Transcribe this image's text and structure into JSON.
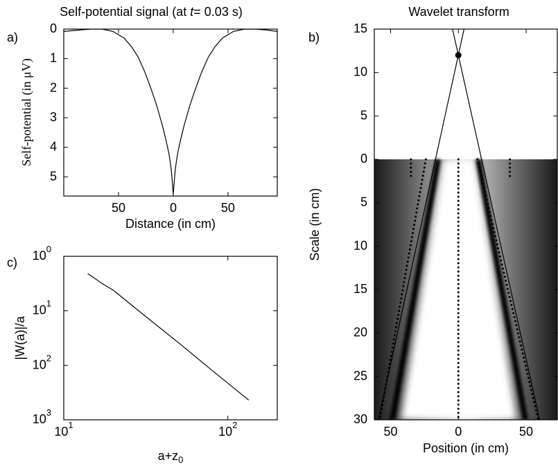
{
  "chart_data": [
    {
      "type": "line",
      "panel_label": "a)",
      "title_pre": "Self-potential signal (at ",
      "title_italic": "t",
      "title_post": "= 0.03 s)",
      "xlabel": "Distance (in cm)",
      "ylabel": "Self-potential (in μV)",
      "xlim": [
        -100,
        95
      ],
      "ylim": [
        0,
        5.65
      ],
      "y_inverted": true,
      "xticks": [
        {
          "value": -50,
          "label": "50"
        },
        0,
        {
          "value": 50,
          "label": "50"
        }
      ],
      "yticks": [
        0,
        1,
        2,
        3,
        4,
        5
      ],
      "series": [
        {
          "color": "#000000",
          "style": "solid",
          "x": [
            -100,
            -85,
            -75,
            -65,
            -55,
            -45,
            -38,
            -32,
            -26,
            -20,
            -15,
            -10,
            -7,
            -4,
            -2,
            -1,
            0,
            1,
            2,
            4,
            7,
            10,
            15,
            20,
            26,
            32,
            38,
            45,
            55,
            65,
            75,
            85,
            95
          ],
          "values": [
            0.08,
            0.03,
            0,
            0,
            0.08,
            0.3,
            0.6,
            0.95,
            1.45,
            2.05,
            2.6,
            3.25,
            3.7,
            4.2,
            4.7,
            5.1,
            5.6,
            5.1,
            4.7,
            4.2,
            3.7,
            3.25,
            2.6,
            2.05,
            1.45,
            0.95,
            0.6,
            0.3,
            0.08,
            0,
            0,
            0.03,
            0.08
          ]
        }
      ]
    },
    {
      "type": "line",
      "panel_label": "b)",
      "title": "Wavelet transform",
      "xlabel": "Position (in cm)",
      "ylabel": "Scale (in  cm)",
      "xlim": [
        -62,
        73
      ],
      "ylim": [
        -15,
        30
      ],
      "y_inverted": true,
      "xticks": [
        {
          "value": -50,
          "label": "50"
        },
        0,
        {
          "value": 50,
          "label": "50"
        }
      ],
      "yticks": [
        {
          "value": -15,
          "label": "15"
        },
        {
          "value": -10,
          "label": "10"
        },
        {
          "value": -5,
          "label": "5"
        },
        0,
        5,
        10,
        15,
        20,
        25,
        30
      ],
      "series": [
        {
          "color": "#000000",
          "style": "solid",
          "x": [
            -59,
            4.2
          ],
          "values": [
            30,
            -15
          ]
        },
        {
          "color": "#000000",
          "style": "solid",
          "x": [
            60,
            -4.3
          ],
          "values": [
            30,
            -15
          ]
        },
        {
          "color": "#000000",
          "style": "dot",
          "x": [
            0
          ],
          "values": [
            -12
          ]
        },
        {
          "color": "#000000",
          "style": "dotted",
          "x": [
            0,
            0
          ],
          "values": [
            0,
            30
          ]
        },
        {
          "color": "#000000",
          "style": "dotted",
          "x": [
            -24,
            -58
          ],
          "values": [
            0,
            30
          ]
        },
        {
          "color": "#000000",
          "style": "dotted",
          "x": [
            14,
            59
          ],
          "values": [
            0,
            30
          ]
        },
        {
          "color": "#000000",
          "style": "dotted",
          "x": [
            -35,
            -35
          ],
          "values": [
            0,
            2
          ]
        },
        {
          "color": "#000000",
          "style": "dotted",
          "x": [
            38,
            38
          ],
          "values": [
            0,
            2
          ]
        }
      ]
    },
    {
      "type": "line",
      "panel_label": "c)",
      "xlabel": "a+z",
      "xlabel_sub": "0",
      "ylabel": "|W(a)|/a",
      "xscale": "log",
      "yscale": "log",
      "xlim": [
        10,
        200
      ],
      "ylim": [
        0.001,
        1
      ],
      "xticks": [
        {
          "value": 10,
          "label": "10",
          "sup": "1"
        },
        {
          "value": 100,
          "label": "10",
          "sup": "2"
        }
      ],
      "yticks": [
        {
          "value": 1,
          "label": "10",
          "sup": "0"
        },
        {
          "value": 0.1,
          "label": "10",
          "sup": "1"
        },
        {
          "value": 0.01,
          "label": "10",
          "sup": "2"
        },
        {
          "value": 0.001,
          "label": "10",
          "sup": "3"
        }
      ],
      "series": [
        {
          "color": "#000000",
          "style": "solid",
          "x": [
            14,
            15,
            17,
            20,
            30,
            50,
            80,
            134
          ],
          "values": [
            0.48,
            0.42,
            0.32,
            0.24,
            0.089,
            0.026,
            0.0081,
            0.0023
          ]
        }
      ]
    }
  ]
}
